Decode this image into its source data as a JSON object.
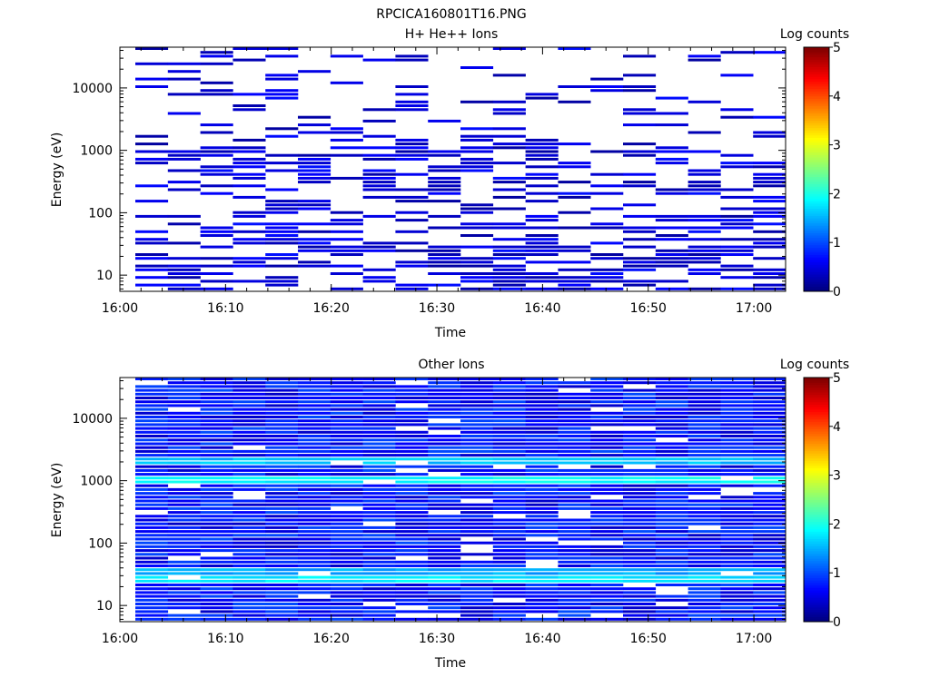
{
  "figure": {
    "filename": "RPCICA160801T16.PNG"
  },
  "chart_data": [
    {
      "type": "heatmap",
      "title": "H+ He++ Ions",
      "xlabel": "Time",
      "ylabel": "Energy (eV)",
      "colorbar_label": "Log counts",
      "x_ticks": [
        "16:00",
        "16:10",
        "16:20",
        "16:30",
        "16:40",
        "16:50",
        "17:00"
      ],
      "x_range": [
        "16:00",
        "17:03"
      ],
      "y_ticks": [
        "10",
        "100",
        "1000",
        "10000"
      ],
      "y_scale": "log",
      "y_range_ev": [
        5.5,
        45000
      ],
      "colorbar_ticks": [
        "0",
        "1",
        "2",
        "3",
        "4",
        "5"
      ],
      "colorbar_range": [
        0,
        5
      ],
      "grid": false,
      "description": "Sparse spectrogram: mostly dark-blue (log counts 0-1) horizontal streaks over 10 eV - 40 keV, many empty (white) energy-time bins."
    },
    {
      "type": "heatmap",
      "title": "Other Ions",
      "xlabel": "Time",
      "ylabel": "Energy (eV)",
      "colorbar_label": "Log counts",
      "x_ticks": [
        "16:00",
        "16:10",
        "16:20",
        "16:30",
        "16:40",
        "16:50",
        "17:00"
      ],
      "x_range": [
        "16:00",
        "17:03"
      ],
      "y_ticks": [
        "10",
        "100",
        "1000",
        "10000"
      ],
      "y_scale": "log",
      "y_range_ev": [
        5.5,
        45000
      ],
      "colorbar_ticks": [
        "0",
        "1",
        "2",
        "3",
        "4",
        "5"
      ],
      "colorbar_range": [
        0,
        5
      ],
      "grid": false,
      "bright_bands_ev": [
        {
          "energy": 2000,
          "log_counts": 1.6
        },
        {
          "energy": 950,
          "log_counts": 1.9
        },
        {
          "energy": 33,
          "log_counts": 1.5
        },
        {
          "energy": 27,
          "log_counts": 1.8
        }
      ],
      "description": "Dense spectrogram filled with blue (log counts ~0.3-1); enhanced cyan-green bands near ~950 eV, ~2 keV and ~25-35 eV."
    }
  ]
}
